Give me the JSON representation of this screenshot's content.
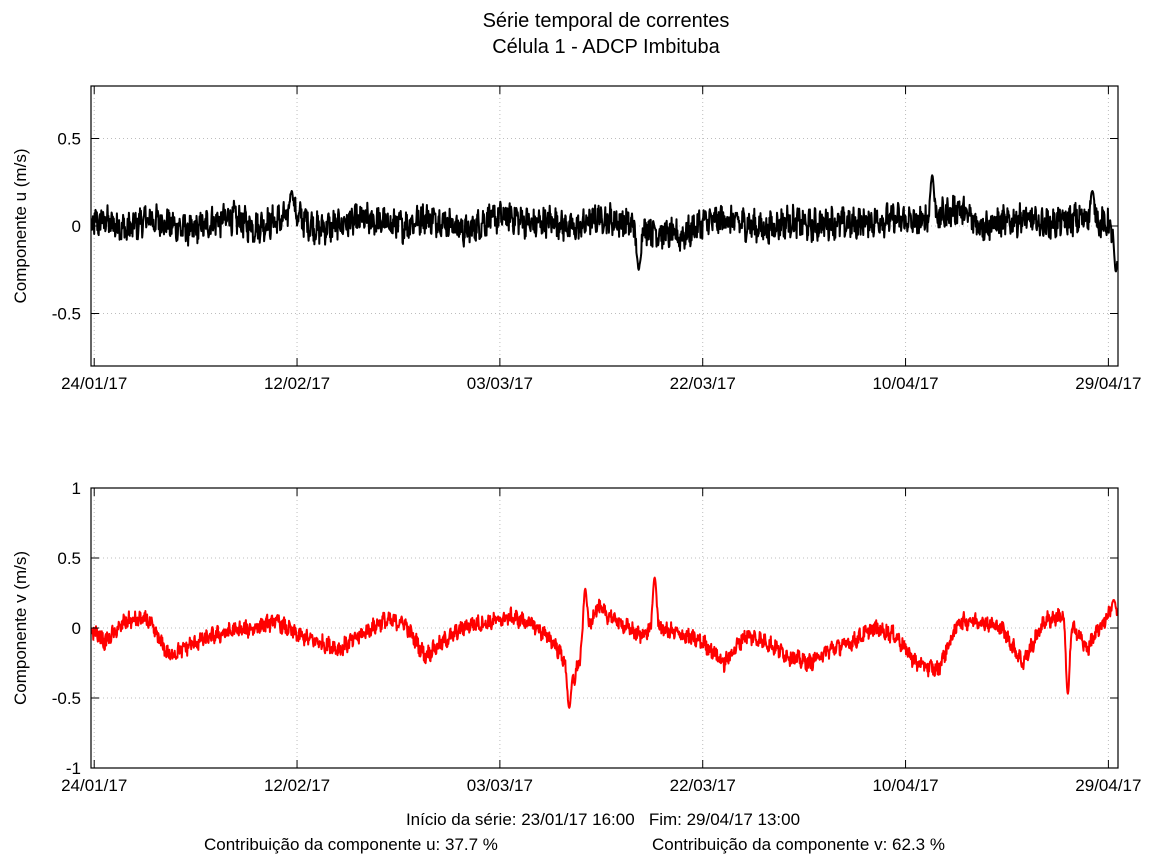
{
  "figure": {
    "title_line1": "Série temporal de correntes",
    "title_line2": "Célula 1 - ADCP Imbituba",
    "footer_line1": "Início da série: 23/01/17 16:00   Fim: 29/04/17 13:00",
    "footer_contrib_u": "Contribuição da componente u: 37.7 %",
    "footer_contrib_v": "Contribuição da componente v: 62.3 %"
  },
  "chart_data": [
    {
      "type": "line",
      "ylabel": "Componente u (m/s)",
      "xlabel": "",
      "color": "#000000",
      "ylim": [
        -0.8,
        0.8
      ],
      "yticks": [
        -0.5,
        0,
        0.5
      ],
      "xlim_days": [
        0.7,
        96.9
      ],
      "xticks": [
        {
          "day": 1,
          "label": "24/01/17"
        },
        {
          "day": 20,
          "label": "12/02/17"
        },
        {
          "day": 39,
          "label": "03/03/17"
        },
        {
          "day": 58,
          "label": "22/03/17"
        },
        {
          "day": 77,
          "label": "10/04/17"
        },
        {
          "day": 96,
          "label": "29/04/17"
        }
      ],
      "grid": true,
      "x_days": [
        0,
        2,
        4,
        6,
        8,
        10,
        12,
        14,
        16,
        18,
        20,
        22,
        24,
        26,
        28,
        30,
        32,
        34,
        36,
        38,
        40,
        42,
        44,
        46,
        48,
        50,
        52,
        54,
        56,
        58,
        60,
        62,
        64,
        66,
        68,
        70,
        72,
        74,
        76,
        78,
        80,
        82,
        84,
        86,
        88,
        90,
        92,
        94,
        96
      ],
      "values": [
        0.0,
        0.03,
        -0.02,
        0.04,
        0.01,
        -0.03,
        0.02,
        0.05,
        -0.01,
        0.03,
        0.06,
        -0.02,
        0.01,
        0.04,
        0.02,
        0.0,
        0.05,
        0.02,
        -0.03,
        0.04,
        0.06,
        0.01,
        0.03,
        -0.02,
        0.05,
        0.03,
        0.0,
        -0.04,
        -0.06,
        0.02,
        0.04,
        0.01,
        -0.02,
        0.03,
        0.0,
        0.02,
        0.01,
        0.03,
        0.04,
        0.02,
        0.05,
        0.1,
        0.0,
        0.02,
        0.04,
        0.01,
        0.03,
        0.05,
        0.0
      ],
      "noise_amplitude": 0.09,
      "extremes": [
        {
          "day": 19.5,
          "value": 0.2
        },
        {
          "day": 52,
          "value": -0.25
        },
        {
          "day": 79.5,
          "value": 0.29
        },
        {
          "day": 94.5,
          "value": 0.2
        },
        {
          "day": 96.7,
          "value": -0.26
        }
      ]
    },
    {
      "type": "line",
      "ylabel": "Componente v (m/s)",
      "xlabel": "",
      "color": "#ff0000",
      "ylim": [
        -1,
        1
      ],
      "yticks": [
        -1,
        -0.5,
        0,
        0.5,
        1
      ],
      "xlim_days": [
        0.7,
        96.9
      ],
      "xticks": [
        {
          "day": 1,
          "label": "24/01/17"
        },
        {
          "day": 20,
          "label": "12/02/17"
        },
        {
          "day": 39,
          "label": "03/03/17"
        },
        {
          "day": 58,
          "label": "22/03/17"
        },
        {
          "day": 77,
          "label": "10/04/17"
        },
        {
          "day": 96,
          "label": "29/04/17"
        }
      ],
      "grid": true,
      "x_days": [
        0,
        2,
        4,
        6,
        8,
        10,
        12,
        14,
        16,
        18,
        20,
        22,
        24,
        26,
        28,
        30,
        32,
        34,
        36,
        38,
        40,
        42,
        44,
        46,
        48,
        50,
        52,
        54,
        56,
        58,
        60,
        62,
        64,
        66,
        68,
        70,
        72,
        74,
        76,
        78,
        80,
        82,
        84,
        86,
        88,
        90,
        92,
        94,
        96
      ],
      "values": [
        0.05,
        -0.1,
        0.05,
        0.06,
        -0.2,
        -0.12,
        -0.06,
        -0.02,
        0.0,
        0.05,
        -0.05,
        -0.1,
        -0.15,
        -0.05,
        0.05,
        0.04,
        -0.2,
        -0.08,
        0.02,
        0.04,
        0.08,
        0.03,
        -0.1,
        -0.35,
        0.15,
        0.05,
        -0.05,
        0.0,
        -0.05,
        -0.1,
        -0.25,
        -0.05,
        -0.1,
        -0.2,
        -0.25,
        -0.15,
        -0.1,
        0.0,
        -0.05,
        -0.25,
        -0.3,
        0.05,
        0.05,
        0.0,
        -0.25,
        0.05,
        0.1,
        -0.15,
        0.1
      ],
      "noise_amplitude": 0.06,
      "extremes": [
        {
          "day": 45.5,
          "value": -0.57
        },
        {
          "day": 47,
          "value": 0.28
        },
        {
          "day": 53.5,
          "value": 0.36
        },
        {
          "day": 92.2,
          "value": -0.47
        },
        {
          "day": 96.5,
          "value": 0.2
        }
      ]
    }
  ]
}
